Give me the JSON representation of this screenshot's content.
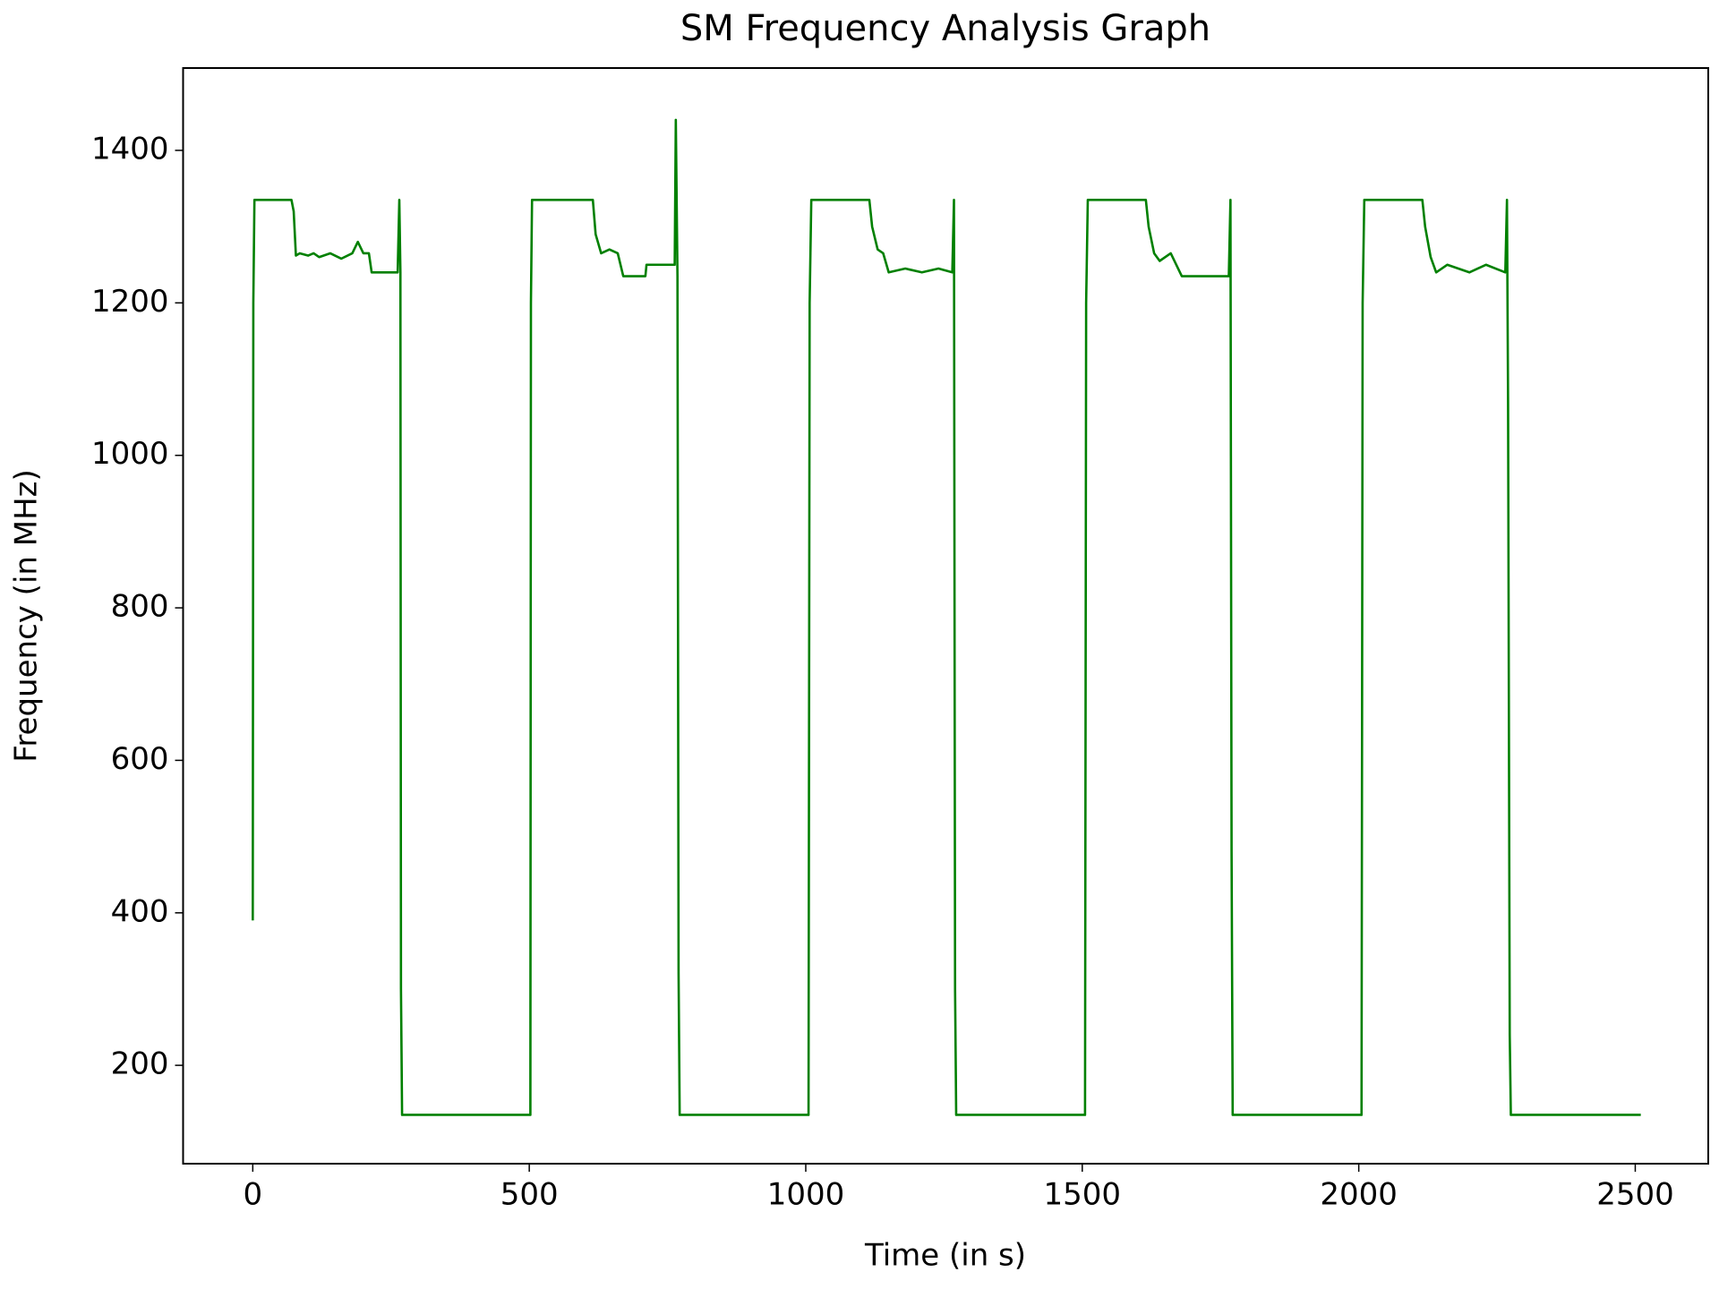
{
  "chart_data": {
    "type": "line",
    "title": "SM Frequency Analysis Graph",
    "x_label": "Time (in s)",
    "y_label": "Frequency (in MHz)",
    "x": [
      0,
      1,
      3,
      70,
      74,
      78,
      85,
      100,
      110,
      120,
      140,
      160,
      180,
      190,
      200,
      210,
      215,
      262,
      265,
      267,
      268,
      270,
      502,
      503,
      505,
      615,
      620,
      630,
      645,
      660,
      670,
      710,
      712,
      763,
      765,
      768,
      770,
      772,
      1005,
      1007,
      1010,
      1115,
      1120,
      1130,
      1140,
      1150,
      1180,
      1210,
      1240,
      1265,
      1268,
      1270,
      1272,
      1505,
      1507,
      1510,
      1615,
      1620,
      1630,
      1640,
      1660,
      1680,
      1720,
      1765,
      1768,
      1770,
      1772,
      2005,
      2007,
      2010,
      2115,
      2120,
      2130,
      2140,
      2160,
      2200,
      2230,
      2265,
      2268,
      2270,
      2273,
      2275,
      2510
    ],
    "series": [
      {
        "color": "#008000",
        "values": [
          390,
          1200,
          1335,
          1335,
          1320,
          1262,
          1265,
          1262,
          1265,
          1260,
          1265,
          1258,
          1265,
          1280,
          1265,
          1265,
          1240,
          1240,
          1335,
          1240,
          300,
          135,
          135,
          1200,
          1335,
          1335,
          1290,
          1265,
          1270,
          1265,
          1235,
          1235,
          1250,
          1250,
          1440,
          1235,
          320,
          135,
          135,
          1200,
          1335,
          1335,
          1300,
          1270,
          1265,
          1240,
          1245,
          1240,
          1245,
          1240,
          1335,
          300,
          135,
          135,
          1200,
          1335,
          1335,
          1300,
          1265,
          1255,
          1265,
          1235,
          1235,
          1235,
          1335,
          480,
          135,
          135,
          1200,
          1335,
          1335,
          1300,
          1260,
          1240,
          1250,
          1240,
          1250,
          1240,
          1335,
          1070,
          240,
          135,
          135
        ]
      }
    ],
    "xlim": [
      -126,
      2632
    ],
    "ylim": [
      71,
      1508
    ],
    "xticks": [
      0,
      500,
      1000,
      1500,
      2000,
      2500
    ],
    "yticks": [
      200,
      400,
      600,
      800,
      1000,
      1200,
      1400
    ]
  }
}
